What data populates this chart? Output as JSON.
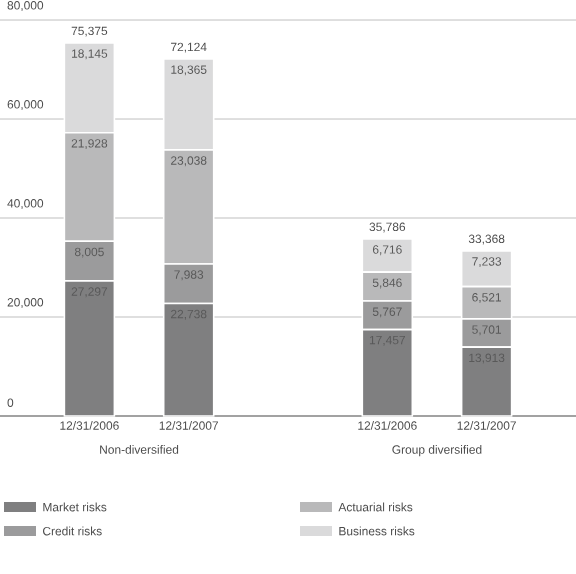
{
  "chart_data": {
    "type": "bar",
    "stacked": true,
    "categories": [
      "12/31/2006",
      "12/31/2007",
      null,
      "12/31/2006",
      "12/31/2007"
    ],
    "series": [
      {
        "name": "Market risks",
        "color": "#7f7f80",
        "values": [
          27297,
          22738,
          null,
          17457,
          13913
        ],
        "value_labels": [
          "27,297",
          "22,738",
          null,
          "17,457",
          "13,913"
        ]
      },
      {
        "name": "Credit risks",
        "color": "#9b9b9c",
        "values": [
          8005,
          7983,
          null,
          5767,
          5701
        ],
        "value_labels": [
          "8,005",
          "7,983",
          null,
          "5,767",
          "5,701"
        ]
      },
      {
        "name": "Actuarial risks",
        "color": "#b9b9ba",
        "values": [
          21928,
          23038,
          null,
          5846,
          6521
        ],
        "value_labels": [
          "21,928",
          "23,038",
          null,
          "5,846",
          "6,521"
        ]
      },
      {
        "name": "Business risks",
        "color": "#dadadb",
        "values": [
          18145,
          18365,
          null,
          6716,
          7233
        ],
        "value_labels": [
          "18,145",
          "18,365",
          null,
          "6,716",
          "7,233"
        ]
      }
    ],
    "totals": [
      "75,375",
      "72,124",
      null,
      "35,786",
      "33,368"
    ],
    "annotations": [
      "Non-diversified",
      "Group diversified"
    ],
    "ylim": [
      0,
      80000
    ],
    "yticks": [
      0,
      {
        "value": 20000,
        "label": "20,000"
      },
      {
        "value": 40000,
        "label": "40,000"
      },
      {
        "value": 60000,
        "label": "60,000"
      },
      {
        "value": 80000,
        "label": "80,000"
      }
    ],
    "grid": "y",
    "legend": "bottom"
  }
}
